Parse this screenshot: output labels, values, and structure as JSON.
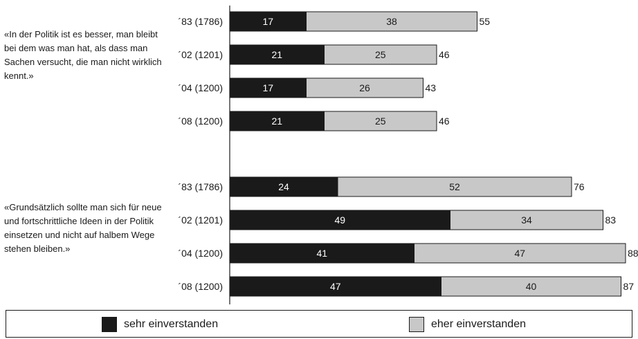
{
  "chart_data": {
    "type": "bar",
    "stacked": true,
    "orientation": "horizontal",
    "xlim": [
      0,
      88
    ],
    "colors": {
      "sehr": "#1a1a1a",
      "eher": "#c8c8c8"
    },
    "legend": {
      "placement": "bottom",
      "entries": [
        "sehr einverstanden",
        "eher einverstanden"
      ]
    },
    "series": [
      {
        "name": "sehr einverstanden",
        "color": "#1a1a1a"
      },
      {
        "name": "eher einverstanden",
        "color": "#c8c8c8"
      }
    ],
    "groups": [
      {
        "statement": "«In der Politik ist es besser, man bleibt bei dem was man hat, als dass man Sachen versucht, die man nicht wirklich kennt.»",
        "bars": [
          {
            "label": "´83 (1786)",
            "sehr": 17,
            "eher": 38,
            "total": 55
          },
          {
            "label": "´02 (1201)",
            "sehr": 21,
            "eher": 25,
            "total": 46
          },
          {
            "label": "´04 (1200)",
            "sehr": 17,
            "eher": 26,
            "total": 43
          },
          {
            "label": "´08 (1200)",
            "sehr": 21,
            "eher": 25,
            "total": 46
          }
        ]
      },
      {
        "statement": "«Grundsätzlich sollte man sich für neue und fortschrittliche Ideen in der Politik einsetzen und nicht auf halbem Wege stehen bleiben.»",
        "bars": [
          {
            "label": "´83 (1786)",
            "sehr": 24,
            "eher": 52,
            "total": 76
          },
          {
            "label": "´02 (1201)",
            "sehr": 49,
            "eher": 34,
            "total": 83
          },
          {
            "label": "´04 (1200)",
            "sehr": 41,
            "eher": 47,
            "total": 88
          },
          {
            "label": "´08 (1200)",
            "sehr": 47,
            "eher": 40,
            "total": 87
          }
        ]
      }
    ]
  }
}
